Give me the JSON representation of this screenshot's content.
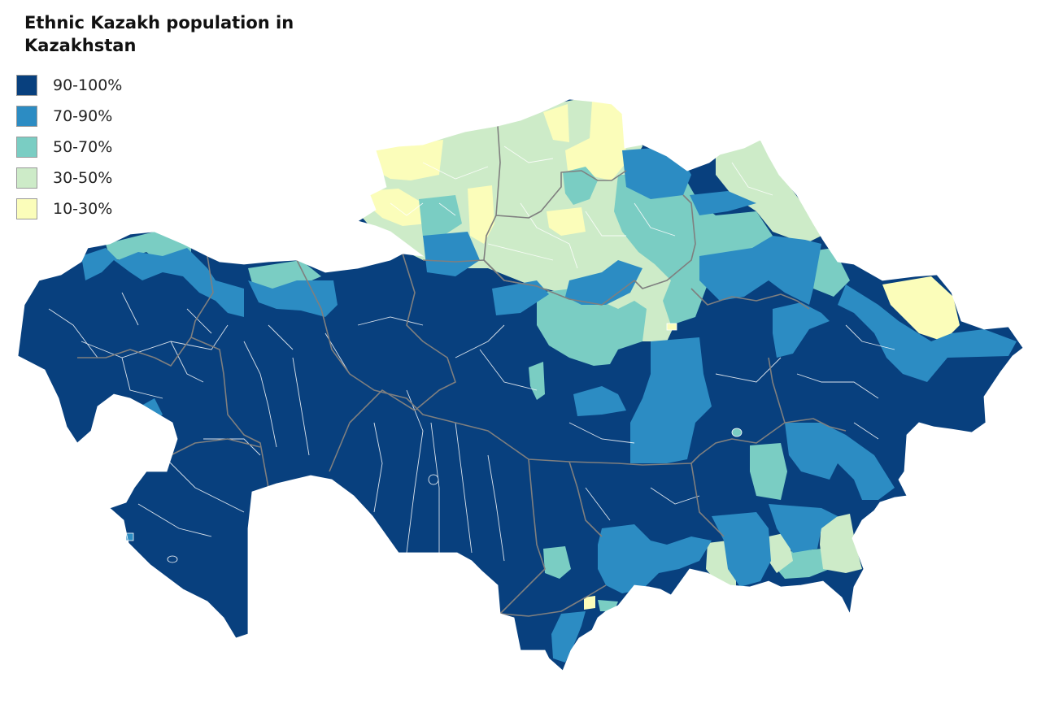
{
  "title": "Ethnic Kazakh population in Kazakhstan",
  "legend": [
    {
      "label": "90-100%",
      "color": "#08407E"
    },
    {
      "label": "70-90%",
      "color": "#2C8CC3"
    },
    {
      "label": "50-70%",
      "color": "#7ACDC3"
    },
    {
      "label": "30-50%",
      "color": "#CDEBC8"
    },
    {
      "label": "10-30%",
      "color": "#FBFDBA"
    }
  ],
  "colors": {
    "background": "#FFFFFF",
    "district_border": "#FFFFFF",
    "region_border": "#7F7F7F"
  }
}
